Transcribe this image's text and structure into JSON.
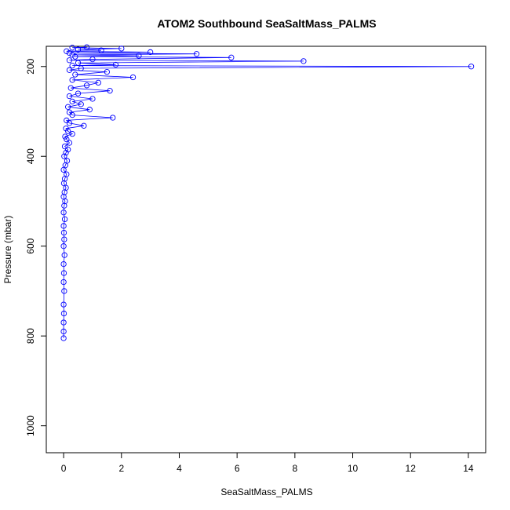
{
  "chart_data": {
    "type": "scatter",
    "title": "ATOM2 Southbound SeaSaltMass_PALMS",
    "xlabel": "SeaSaltMass_PALMS",
    "ylabel": "Pressure (mbar)",
    "xlim": [
      -0.6,
      14.6
    ],
    "ylim": [
      1060,
      155
    ],
    "y_inverted": true,
    "x_ticks": [
      0,
      2,
      4,
      6,
      8,
      10,
      12,
      14
    ],
    "x_tick_labels": [
      "0",
      "2",
      "4",
      "6",
      "8",
      "10",
      "12",
      "14"
    ],
    "y_ticks": [
      200,
      400,
      600,
      800,
      1000
    ],
    "y_tick_labels": [
      "200",
      "400",
      "600",
      "800",
      "1000"
    ],
    "series_color": "#0000ff",
    "marker": "open-circle",
    "connected": true,
    "grid": false,
    "series": [
      {
        "x": [
          0.0,
          0.0,
          0.0,
          0.01,
          0.0,
          0.02,
          0.0,
          0.01,
          0.0,
          0.03,
          0.0,
          0.02,
          0.01,
          0.0,
          0.04,
          0.0,
          0.02,
          0.05,
          0.0,
          0.03,
          0.08,
          0.01,
          0.04,
          0.1,
          0.0,
          0.06,
          0.12,
          0.02,
          0.08,
          0.15,
          0.04,
          0.2,
          0.1,
          0.05,
          0.3,
          0.15,
          0.08,
          0.7,
          0.2,
          0.1,
          1.7,
          0.3,
          0.2,
          0.9,
          0.15,
          0.6,
          0.3,
          1.0,
          0.2,
          0.5,
          1.6,
          0.25,
          0.8,
          1.2,
          0.3,
          2.4,
          0.4,
          1.5,
          0.2,
          0.6,
          14.1,
          0.3,
          1.8,
          0.5,
          8.3,
          0.2,
          1.0,
          5.8,
          0.4,
          2.6,
          0.3,
          4.6,
          0.2,
          3.0,
          0.1,
          1.3,
          0.5,
          2.0,
          0.3,
          0.8
        ],
        "y": [
          805,
          790,
          770,
          750,
          730,
          700,
          680,
          660,
          640,
          620,
          600,
          585,
          570,
          555,
          540,
          525,
          510,
          500,
          490,
          480,
          470,
          460,
          450,
          440,
          430,
          420,
          410,
          400,
          392,
          385,
          378,
          370,
          362,
          356,
          350,
          344,
          338,
          332,
          326,
          320,
          314,
          308,
          302,
          296,
          290,
          284,
          278,
          272,
          266,
          260,
          254,
          248,
          242,
          236,
          230,
          224,
          218,
          212,
          208,
          204,
          200,
          198,
          196,
          192,
          188,
          186,
          184,
          180,
          178,
          176,
          174,
          172,
          170,
          168,
          166,
          164,
          162,
          160,
          158,
          157
        ]
      }
    ]
  }
}
